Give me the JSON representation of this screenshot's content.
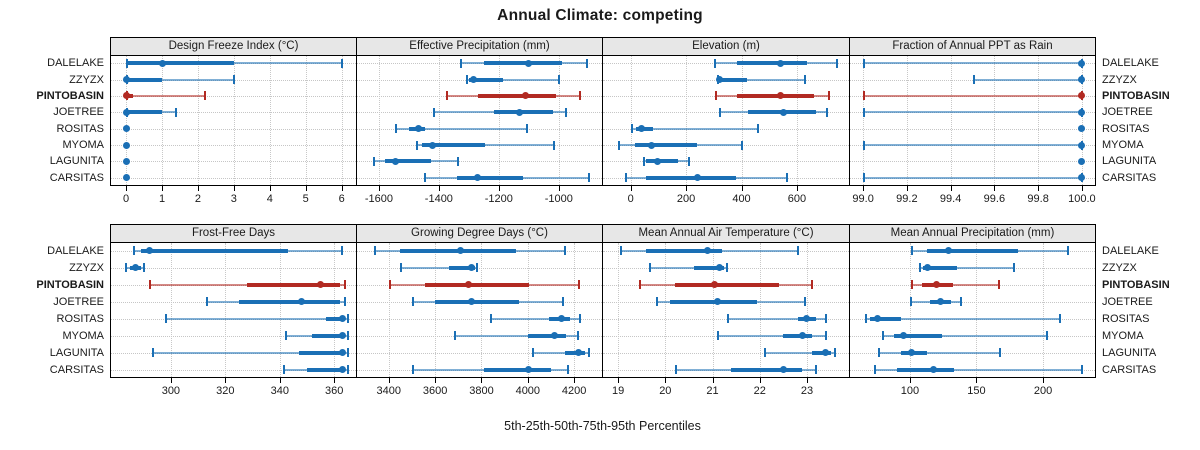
{
  "title": "Annual Climate: competing",
  "caption": "5th-25th-50th-75th-95th Percentiles",
  "colors": {
    "series": "#1a6fb5",
    "highlight": "#b22a22",
    "header_bg": "#e7e7e7",
    "border": "#000000",
    "grid": "#c8c8c8"
  },
  "sites": [
    "DALELAKE",
    "ZZYZX",
    "PINTOBASIN",
    "JOETREE",
    "ROSITAS",
    "MYOMA",
    "LAGUNITA",
    "CARSITAS"
  ],
  "highlight_site": "PINTOBASIN",
  "chart_data": {
    "type": "scatter",
    "variant": "trellis dot plot with 5th-25th-50th-75th-95th percentile intervals, 2 rows x 4 columns of panels",
    "percentiles": [
      5,
      25,
      50,
      75,
      95
    ],
    "grid": true,
    "legend_position": "none",
    "site_order_top_to_bottom": [
      "DALELAKE",
      "ZZYZX",
      "PINTOBASIN",
      "JOETREE",
      "ROSITAS",
      "MYOMA",
      "LAGUNITA",
      "CARSITAS"
    ],
    "panels": [
      {
        "title": "Design Freeze Index (°C)",
        "xlim": [
          -0.42,
          6.4
        ],
        "ticks": [
          0,
          1,
          2,
          3,
          4,
          5,
          6
        ],
        "tick_labels": [
          "0",
          "1",
          "2",
          "3",
          "4",
          "5",
          "6"
        ],
        "values": [
          [
            0,
            0,
            1,
            3,
            6
          ],
          [
            0,
            0,
            0,
            1,
            3
          ],
          [
            0,
            0,
            0,
            0.2,
            2.2
          ],
          [
            0,
            0,
            0,
            1,
            1.4
          ],
          [
            0,
            0,
            0,
            0,
            0
          ],
          [
            0,
            0,
            0,
            0,
            0
          ],
          [
            0,
            0,
            0,
            0,
            0
          ],
          [
            0,
            0,
            0,
            0,
            0
          ]
        ]
      },
      {
        "title": "Effective Precipitation (mm)",
        "xlim": [
          -1673,
          -856
        ],
        "ticks": [
          -1600,
          -1400,
          -1200,
          -1000
        ],
        "tick_labels": [
          "-1600",
          "-1400",
          "-1200",
          "-1000"
        ],
        "values": [
          [
            -1330,
            -1250,
            -1100,
            -990,
            -905
          ],
          [
            -1310,
            -1300,
            -1285,
            -1185,
            -1000
          ],
          [
            -1375,
            -1270,
            -1110,
            -1010,
            -930
          ],
          [
            -1420,
            -1215,
            -1130,
            -1020,
            -975
          ],
          [
            -1545,
            -1500,
            -1468,
            -1445,
            -1105
          ],
          [
            -1475,
            -1455,
            -1420,
            -1245,
            -1015
          ],
          [
            -1620,
            -1580,
            -1545,
            -1425,
            -1335
          ],
          [
            -1450,
            -1340,
            -1270,
            -1120,
            -900
          ]
        ]
      },
      {
        "title": "Elevation (m)",
        "xlim": [
          -100,
          788
        ],
        "ticks": [
          0,
          200,
          400,
          600
        ],
        "tick_labels": [
          "0",
          "200",
          "400",
          "600"
        ],
        "values": [
          [
            300,
            385,
            540,
            635,
            745
          ],
          [
            310,
            315,
            320,
            420,
            630
          ],
          [
            305,
            385,
            540,
            660,
            715
          ],
          [
            320,
            425,
            550,
            670,
            710
          ],
          [
            0,
            20,
            40,
            80,
            460
          ],
          [
            -45,
            15,
            75,
            240,
            400
          ],
          [
            45,
            55,
            95,
            170,
            210
          ],
          [
            -20,
            55,
            240,
            380,
            565
          ]
        ]
      },
      {
        "title": "Fraction of Annual PPT as Rain",
        "xlim": [
          98.94,
          100.06
        ],
        "ticks": [
          99.0,
          99.2,
          99.4,
          99.6,
          99.8,
          100.0
        ],
        "tick_labels": [
          "99.0",
          "99.2",
          "99.4",
          "99.6",
          "99.8",
          "100.0"
        ],
        "values": [
          [
            99.0,
            100,
            100,
            100,
            100
          ],
          [
            99.5,
            100,
            100,
            100,
            100
          ],
          [
            99.0,
            100,
            100,
            100,
            100
          ],
          [
            99.0,
            100,
            100,
            100,
            100
          ],
          [
            100,
            100,
            100,
            100,
            100
          ],
          [
            99.0,
            100,
            100,
            100,
            100
          ],
          [
            100,
            100,
            100,
            100,
            100
          ],
          [
            99.0,
            100,
            100,
            100,
            100
          ]
        ]
      },
      {
        "title": "Frost-Free Days",
        "xlim": [
          278,
          368
        ],
        "ticks": [
          300,
          320,
          340,
          360
        ],
        "tick_labels": [
          "300",
          "320",
          "340",
          "360"
        ],
        "values": [
          [
            286,
            289,
            292,
            343,
            363
          ],
          [
            283,
            285,
            287,
            289,
            290
          ],
          [
            292,
            328,
            355,
            362,
            364
          ],
          [
            313,
            325,
            348,
            362,
            364
          ],
          [
            298,
            357,
            363,
            364,
            365
          ],
          [
            342,
            352,
            363,
            364,
            365
          ],
          [
            293,
            347,
            363,
            364,
            365
          ],
          [
            341,
            350,
            363,
            364,
            365
          ]
        ]
      },
      {
        "title": "Growing Degree Days (°C)",
        "xlim": [
          3263,
          4320
        ],
        "ticks": [
          3400,
          3600,
          3800,
          4000,
          4200
        ],
        "tick_labels": [
          "3400",
          "3600",
          "3800",
          "4000",
          "4200"
        ],
        "values": [
          [
            3335,
            3450,
            3710,
            3950,
            4160
          ],
          [
            3450,
            3660,
            3755,
            3770,
            3780
          ],
          [
            3400,
            3555,
            3745,
            4005,
            4220
          ],
          [
            3500,
            3600,
            3755,
            3960,
            4150
          ],
          [
            3835,
            4090,
            4145,
            4180,
            4225
          ],
          [
            3680,
            4000,
            4115,
            4165,
            4215
          ],
          [
            4020,
            4160,
            4220,
            4245,
            4265
          ],
          [
            3500,
            3810,
            4005,
            4100,
            4175
          ]
        ]
      },
      {
        "title": "Mean Annual Air Temperature (°C)",
        "xlim": [
          18.68,
          23.89
        ],
        "ticks": [
          19,
          20,
          21,
          22,
          23
        ],
        "tick_labels": [
          "19",
          "20",
          "21",
          "22",
          "23"
        ],
        "values": [
          [
            19.05,
            19.6,
            20.9,
            21.2,
            22.8
          ],
          [
            19.65,
            20.6,
            21.15,
            21.25,
            21.3
          ],
          [
            19.45,
            20.2,
            21.05,
            22.4,
            23.1
          ],
          [
            19.8,
            20.1,
            21.1,
            21.95,
            22.95
          ],
          [
            21.3,
            22.8,
            23.0,
            23.2,
            23.4
          ],
          [
            21.1,
            22.5,
            22.9,
            23.1,
            23.4
          ],
          [
            22.1,
            23.1,
            23.4,
            23.5,
            23.6
          ],
          [
            20.2,
            21.4,
            22.5,
            22.9,
            23.2
          ]
        ]
      },
      {
        "title": "Mean Annual Precipitation (mm)",
        "xlim": [
          55,
          239
        ],
        "ticks": [
          100,
          150,
          200
        ],
        "tick_labels": [
          "100",
          "150",
          "200"
        ],
        "values": [
          [
            101,
            113,
            129,
            181,
            219
          ],
          [
            107,
            110,
            113,
            135,
            178
          ],
          [
            101,
            109,
            120,
            132,
            167
          ],
          [
            100,
            115,
            123,
            131,
            138
          ],
          [
            66,
            70,
            76,
            93,
            213
          ],
          [
            79,
            88,
            95,
            124,
            203
          ],
          [
            76,
            93,
            101,
            113,
            168
          ],
          [
            73,
            90,
            118,
            133,
            229
          ]
        ]
      }
    ]
  }
}
